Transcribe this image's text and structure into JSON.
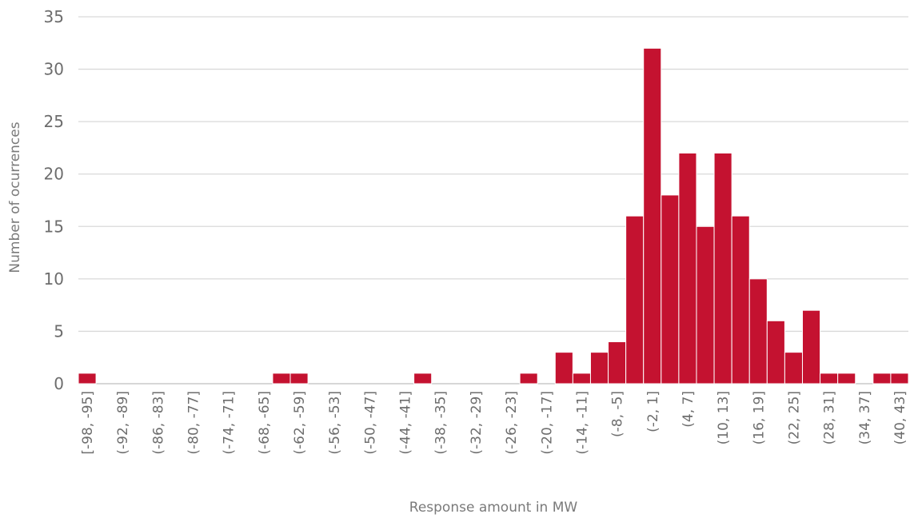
{
  "colors": {
    "bar": "#c41230",
    "grid": "#d9d9d9",
    "text": "#6d6d6d"
  },
  "chart_data": {
    "type": "bar",
    "title": "",
    "xlabel": "Response amount in MW",
    "ylabel": "Number of ocurrences",
    "ylim": [
      0,
      35
    ],
    "yticks": [
      0,
      5,
      10,
      15,
      20,
      25,
      30,
      35
    ],
    "grid": true,
    "legend": "none",
    "categories": [
      "[-98, -95]",
      "(-95, -92]",
      "(-92, -89]",
      "(-89, -86]",
      "(-86, -83]",
      "(-83, -80]",
      "(-80, -77]",
      "(-77, -74]",
      "(-74, -71]",
      "(-71, -68]",
      "(-68, -65]",
      "(-65, -62]",
      "(-62, -59]",
      "(-59, -56]",
      "(-56, -53]",
      "(-53, -50]",
      "(-50, -47]",
      "(-47, -44]",
      "(-44, -41]",
      "(-41, -38]",
      "(-38, -35]",
      "(-35, -32]",
      "(-32, -29]",
      "(-29, -26]",
      "(-26, -23]",
      "(-23, -20]",
      "(-20, -17]",
      "(-17, -14]",
      "(-14, -11]",
      "(-11, -8]",
      "(-8, -5]",
      "(-5, -2]",
      "(-2, 1]",
      "(1, 4]",
      "(4, 7]",
      "(7, 10]",
      "(10, 13]",
      "(13, 16]",
      "(16, 19]",
      "(19, 22]",
      "(22, 25]",
      "(25, 28]",
      "(28, 31]",
      "(31, 34]",
      "(34, 37]",
      "(37, 40]",
      "(40, 43]"
    ],
    "values": [
      1,
      0,
      0,
      0,
      0,
      0,
      0,
      0,
      0,
      0,
      0,
      1,
      1,
      0,
      0,
      0,
      0,
      0,
      0,
      1,
      0,
      0,
      0,
      0,
      0,
      1,
      0,
      3,
      1,
      3,
      4,
      16,
      32,
      18,
      22,
      15,
      22,
      16,
      10,
      6,
      3,
      7,
      1,
      1,
      0,
      1,
      1
    ],
    "labeled_every": 2
  }
}
